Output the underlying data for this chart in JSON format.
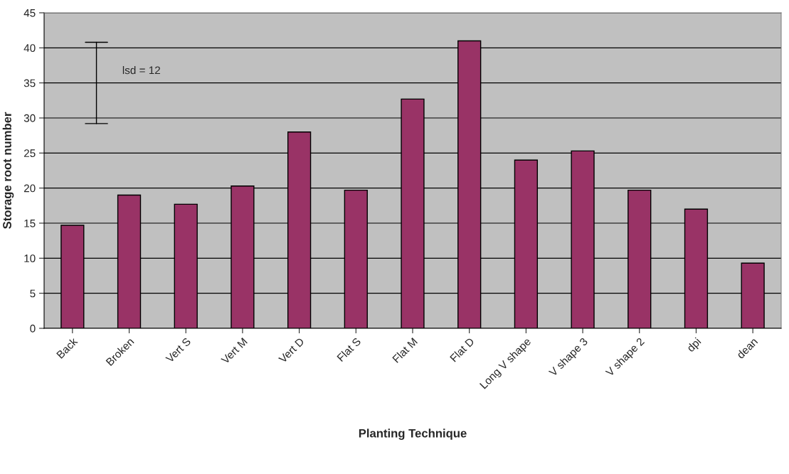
{
  "chart_data": {
    "type": "bar",
    "xlabel": "Planting Technique",
    "ylabel": "Storage root number",
    "categories": [
      "Back",
      "Broken",
      "Vert S",
      "Vert M",
      "Vert D",
      "Flat S",
      "Flat M",
      "Flat D",
      "Long V shape",
      "V shape 3",
      "V shape 2",
      "dpi",
      "dean"
    ],
    "values": [
      14.7,
      19.0,
      17.7,
      20.3,
      28.0,
      19.7,
      32.7,
      41.0,
      24.0,
      25.3,
      19.7,
      17.0,
      9.3
    ],
    "color": "#993366",
    "ylim": [
      0,
      45
    ],
    "yticks": [
      0,
      5,
      10,
      15,
      20,
      25,
      30,
      35,
      40,
      45
    ],
    "grid": "y",
    "legend": false,
    "annotations": [
      "lsd = 12"
    ]
  }
}
